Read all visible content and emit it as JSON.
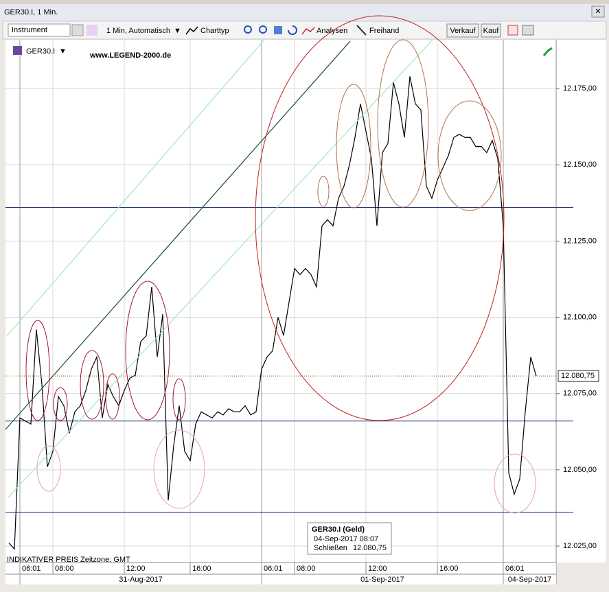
{
  "window_title": "GER30.I, 1 Min.",
  "toolbar": {
    "instrument": "Instrument",
    "interval": "1 Min, Automatisch",
    "chart_type": "Charttyp",
    "analyses": "Analysen",
    "freehand": "Freihand",
    "sell": "Verkauf",
    "buy": "Kauf"
  },
  "chart_data": {
    "type": "line",
    "watermark": "www.LEGEND-2000.de",
    "categories": [
      null,
      null,
      "06:01",
      null,
      null,
      null,
      null,
      null,
      "08:00",
      null,
      null,
      null,
      null,
      null,
      null,
      null,
      null,
      null,
      null,
      null,
      null,
      "12:00",
      null,
      null,
      null,
      null,
      null,
      null,
      null,
      null,
      null,
      null,
      null,
      "16:00",
      null,
      null,
      null,
      null,
      null,
      null,
      null,
      null,
      null,
      null,
      null,
      null,
      "06:01",
      null,
      null,
      null,
      null,
      null,
      "08:00",
      null,
      null,
      null,
      null,
      null,
      null,
      null,
      null,
      null,
      null,
      null,
      null,
      "12:00",
      null,
      null,
      null,
      null,
      null,
      null,
      null,
      null,
      null,
      null,
      null,
      null,
      "16:00",
      null,
      null,
      null,
      null,
      null,
      null,
      null,
      null,
      null,
      null,
      null,
      "06:01",
      null,
      null,
      null,
      null,
      null,
      null
    ],
    "series": [
      {
        "name": "GER30.I",
        "color": "#000000",
        "values": [
          12026,
          12024,
          12067,
          12066,
          12065,
          12096,
          12078,
          12051,
          12056,
          12074,
          12071,
          12062,
          12069,
          12071,
          12076,
          12083,
          12087,
          12067,
          12078,
          12074,
          12071,
          12076,
          12080,
          12081,
          12092,
          12094,
          12110,
          12087,
          12101,
          12040,
          12058,
          12071,
          12056,
          12053,
          12065,
          12069,
          12068,
          12067,
          12069,
          12068,
          12070,
          12069,
          12069,
          12071,
          12068,
          12069,
          12083,
          12087,
          12089,
          12100,
          12094,
          12105,
          12116,
          12114,
          12116,
          12114,
          12110,
          12130,
          12132,
          12130,
          12139,
          12143,
          12150,
          12159,
          12170,
          12161,
          12152,
          12130,
          12154,
          12157,
          12177,
          12170,
          12159,
          12179,
          12170,
          12168,
          12143,
          12139,
          12145,
          12149,
          12153,
          12159,
          12160,
          12159,
          12159,
          12156,
          12156,
          12154,
          12158,
          12152,
          12130,
          12049,
          12042,
          12047,
          12069,
          12087,
          12080.75
        ]
      }
    ],
    "ylim": [
      12019.6,
      12191
    ],
    "yticks": [
      {
        "value": 12025,
        "label": "12.025,00"
      },
      {
        "value": 12050,
        "label": "12.050,00"
      },
      {
        "value": 12075,
        "label": "12.075,00"
      },
      {
        "value": 12100,
        "label": "12.100,00"
      },
      {
        "value": 12125,
        "label": "12.125,00"
      },
      {
        "value": 12150,
        "label": "12.150,00"
      },
      {
        "value": 12175,
        "label": "12.175,00"
      }
    ],
    "grid": true,
    "dates": [
      "31-Aug-2017",
      "01-Sep-2017",
      "04-Sep-2017"
    ],
    "hlines": [
      12136,
      12066,
      12036
    ],
    "hline_color": "#2a3580",
    "last_price": {
      "value": 12080.75,
      "label": "12.080,75"
    },
    "footer": "INDIKATIVER PREIS",
    "timezone": "Zeitzone: GMT",
    "info_box": {
      "title": "GER30.I (Geld)",
      "time": "04-Sep-2017 08:07",
      "close_label": "Schließen",
      "close_value": "12.080,75"
    }
  }
}
